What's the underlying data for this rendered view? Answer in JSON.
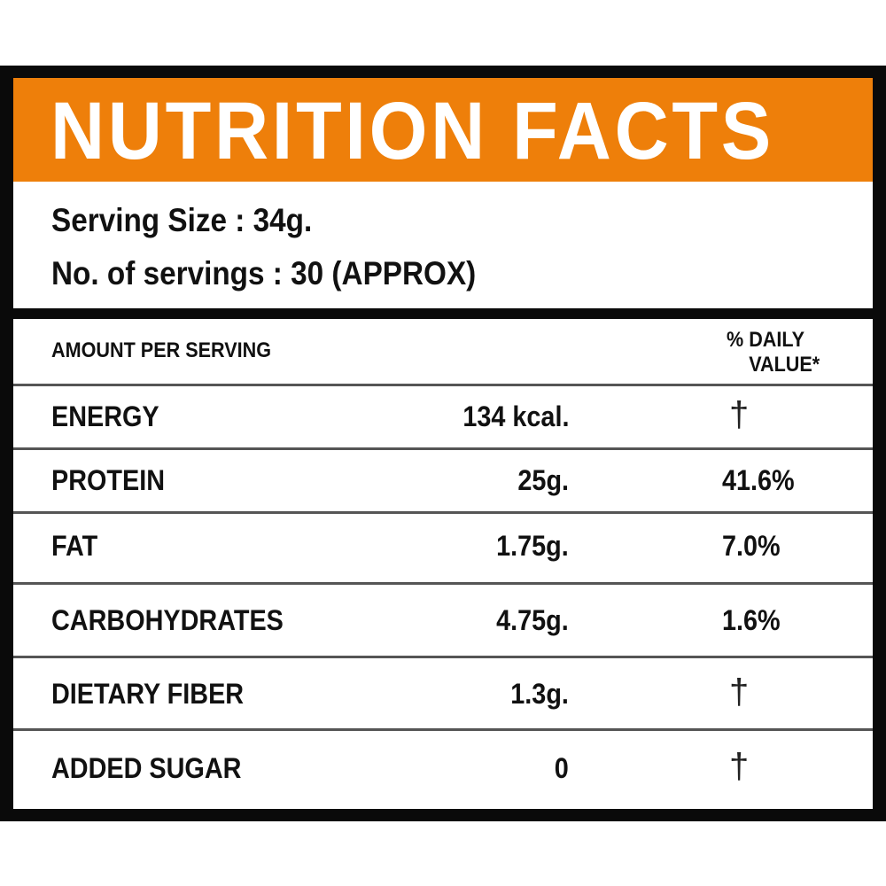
{
  "colors": {
    "header_bg": "#EE7F0A",
    "border": "#0a0a0a"
  },
  "title": "NUTRITION FACTS",
  "serving_size": "Serving Size : 34g.",
  "servings": "No. of servings : 30 (APPROX)",
  "table": {
    "col_amount": "AMOUNT PER SERVING",
    "col_dv_line1": "% DAILY",
    "col_dv_line2": "VALUE*",
    "rows": [
      {
        "name": "ENERGY",
        "amount": "134 kcal.",
        "dv": "†"
      },
      {
        "name": "PROTEIN",
        "amount": "25g.",
        "dv": "41.6%"
      },
      {
        "name": "FAT",
        "amount": "1.75g.",
        "dv": "7.0%"
      },
      {
        "name": "CARBOHYDRATES",
        "amount": "4.75g.",
        "dv": "1.6%"
      },
      {
        "name": "DIETARY FIBER",
        "amount": "1.3g.",
        "dv": "†"
      },
      {
        "name": "ADDED SUGAR",
        "amount": "0",
        "dv": "†"
      }
    ]
  }
}
